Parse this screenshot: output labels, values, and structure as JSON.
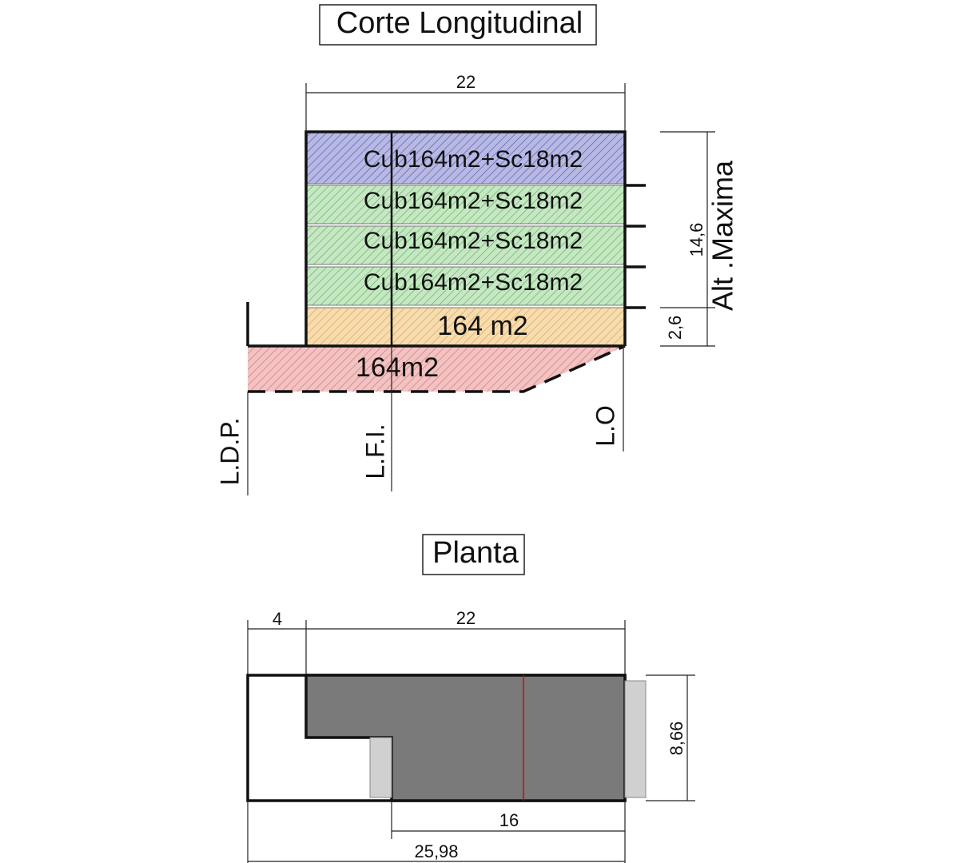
{
  "section": {
    "title": "Corte Longitudinal",
    "width_dim": "22",
    "floors": [
      "Cub164m2+Sc18m2",
      "Cub164m2+Sc18m2",
      "Cub164m2+Sc18m2",
      "Cub164m2+Sc18m2"
    ],
    "ground_floor": "164 m2",
    "basement": "164m2",
    "height_dim": "14,6",
    "height_label": "Alt .Maxima",
    "ground_dim": "2,6",
    "lines": {
      "ldp": "L.D.P.",
      "lfi": "L.F.I.",
      "lo": "L.O"
    }
  },
  "plan": {
    "title": "Planta",
    "setback_dim": "4",
    "width_dim": "22",
    "depth_dim": "8,66",
    "rear_dim": "16",
    "total_dim": "25,98"
  }
}
